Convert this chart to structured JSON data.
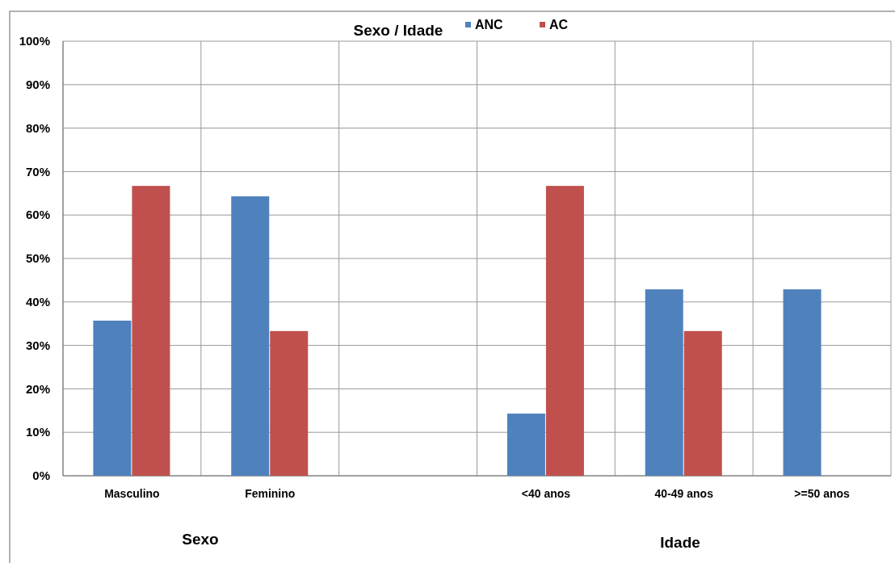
{
  "chart_data": {
    "type": "bar",
    "title": "Sexo / Idade",
    "categories": [
      "Masculino",
      "Feminino",
      null,
      "<40 anos",
      "40-49 anos",
      ">=50 anos"
    ],
    "series": [
      {
        "name": "ANC",
        "color": "#4f81bd",
        "values": [
          35.7,
          64.3,
          null,
          14.3,
          42.9,
          42.9
        ]
      },
      {
        "name": "AC",
        "color": "#c0504d",
        "values": [
          66.7,
          33.3,
          null,
          66.7,
          33.3,
          0
        ]
      }
    ],
    "ylim": [
      0,
      100
    ],
    "yticks": [
      {
        "value": 0,
        "label": "0%"
      },
      {
        "value": 10,
        "label": "10%"
      },
      {
        "value": 20,
        "label": "20%"
      },
      {
        "value": 30,
        "label": "30%"
      },
      {
        "value": 40,
        "label": "40%"
      },
      {
        "value": 50,
        "label": "50%"
      },
      {
        "value": 60,
        "label": "60%"
      },
      {
        "value": 70,
        "label": "70%"
      },
      {
        "value": 80,
        "label": "80%"
      },
      {
        "value": 90,
        "label": "90%"
      },
      {
        "value": 100,
        "label": "100%"
      }
    ],
    "grid": true,
    "legend": "top",
    "annotations": [
      "Sexo",
      "Idade"
    ]
  }
}
